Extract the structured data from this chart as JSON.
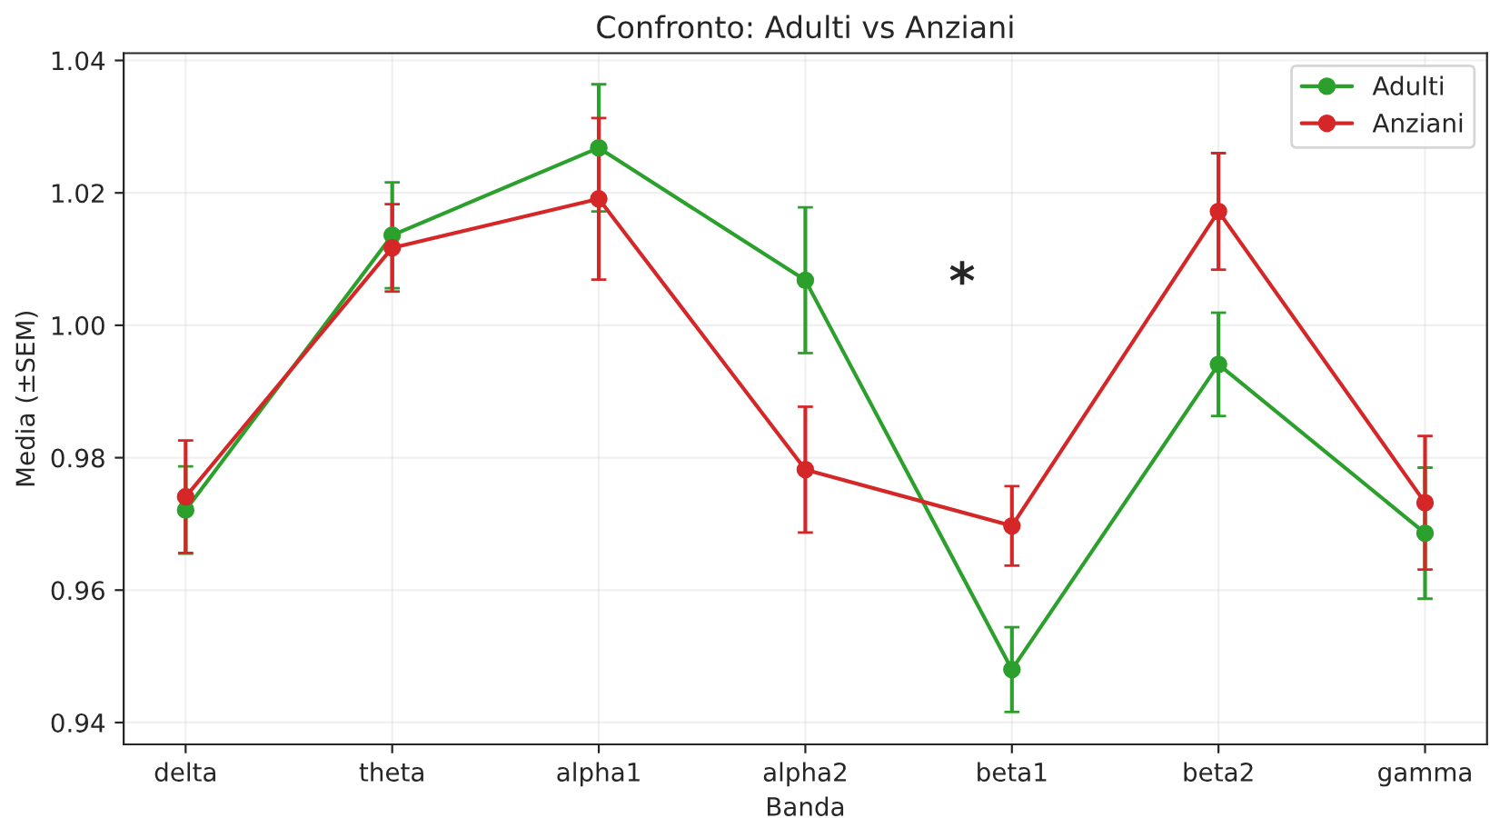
{
  "chart_data": {
    "type": "line",
    "title": "Confronto: Adulti vs Anziani",
    "xlabel": "Banda",
    "ylabel": "Media (±SEM)",
    "categories": [
      "delta",
      "theta",
      "alpha1",
      "alpha2",
      "beta1",
      "beta2",
      "gamma"
    ],
    "series": [
      {
        "name": "Adulti",
        "color": "#2ca02c",
        "values": [
          0.9721,
          1.0136,
          1.0268,
          1.0068,
          0.948,
          0.9941,
          0.9686
        ],
        "errors": [
          0.0066,
          0.008,
          0.0096,
          0.011,
          0.0064,
          0.0078,
          0.0099
        ]
      },
      {
        "name": "Anziani",
        "color": "#d62728",
        "values": [
          0.9741,
          1.0117,
          1.0191,
          0.9782,
          0.9697,
          1.0172,
          0.9732
        ],
        "errors": [
          0.0085,
          0.0066,
          0.0122,
          0.0095,
          0.006,
          0.0088,
          0.0101
        ]
      }
    ],
    "ylim": [
      0.9367,
      1.0411
    ],
    "yticks": [
      0.94,
      0.96,
      0.98,
      {
        "value": 1.0,
        "label": "1.00"
      },
      1.02,
      1.04
    ],
    "annotations": [
      "*"
    ],
    "grid": true,
    "legend": "top right",
    "marker": "circle",
    "line_style": "solid"
  }
}
